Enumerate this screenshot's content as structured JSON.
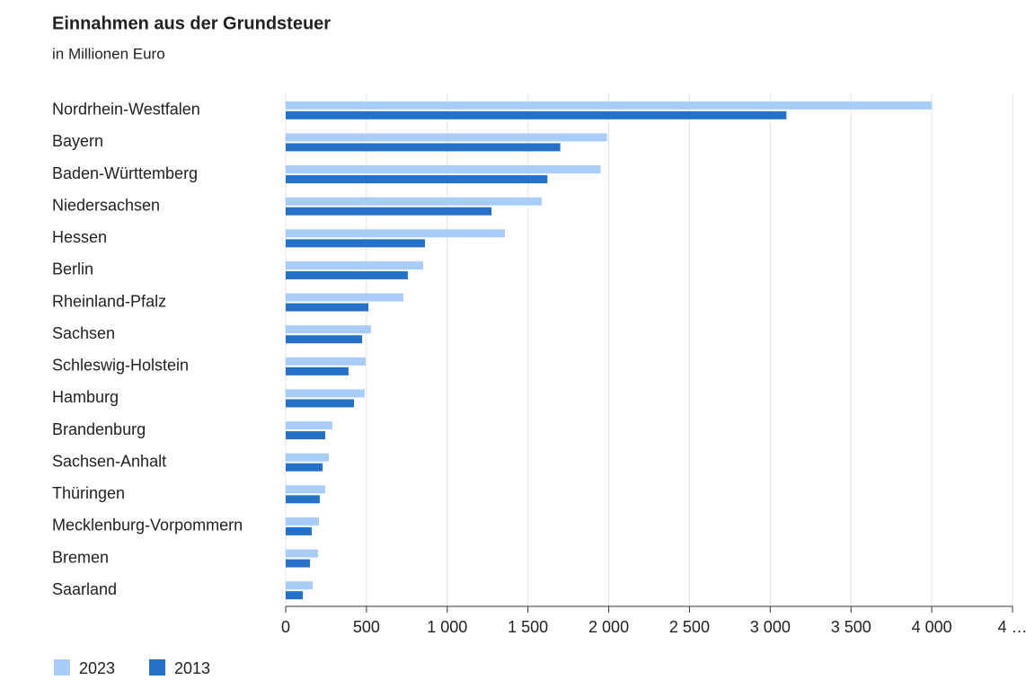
{
  "chart_data": {
    "type": "hbar",
    "title": "Einnahmen aus der Grundsteuer",
    "subtitle": "in Millionen Euro",
    "categories": [
      "Nordrhein-Westfalen",
      "Bayern",
      "Baden-Württemberg",
      "Niedersachsen",
      "Hessen",
      "Berlin",
      "Rheinland-Pfalz",
      "Sachsen",
      "Schleswig-Holstein",
      "Hamburg",
      "Brandenburg",
      "Sachsen-Anhalt",
      "Thüringen",
      "Mecklenburg-Vorpommern",
      "Bremen",
      "Saarland"
    ],
    "series": [
      {
        "name": "2023",
        "color": "#a8cdfb",
        "values": [
          4000,
          1990,
          1950,
          1585,
          1357,
          851,
          729,
          528,
          495,
          489,
          289,
          267,
          245,
          206,
          200,
          167
        ]
      },
      {
        "name": "2013",
        "color": "#2570c9",
        "values": [
          3100,
          1700,
          1620,
          1274,
          862,
          756,
          512,
          473,
          389,
          423,
          245,
          228,
          211,
          161,
          150,
          106
        ]
      }
    ],
    "xlim": [
      0,
      4500
    ],
    "xticks": [
      0,
      500,
      {
        "value": 1000,
        "label": "1 000"
      },
      {
        "value": 1500,
        "label": "1 500"
      },
      {
        "value": 2000,
        "label": "2 000"
      },
      {
        "value": 2500,
        "label": "2 500"
      },
      {
        "value": 3000,
        "label": "3 000"
      },
      {
        "value": 3500,
        "label": "3 500"
      },
      {
        "value": 4000,
        "label": "4 000"
      },
      {
        "value": 4500,
        "label": "4 …"
      }
    ],
    "grid": true,
    "legend": "bottom-left"
  }
}
